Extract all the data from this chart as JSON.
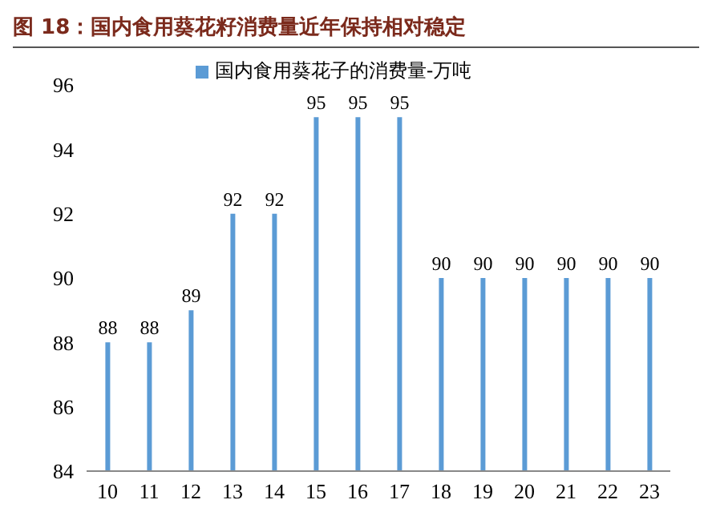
{
  "chart_data": {
    "type": "bar",
    "title": "图 18：国内食用葵花籽消费量近年保持相对稳定",
    "categories": [
      "10",
      "11",
      "12",
      "13",
      "14",
      "15",
      "16",
      "17",
      "18",
      "19",
      "20",
      "21",
      "22",
      "23"
    ],
    "series": [
      {
        "name": "国内食用葵花子的消费量-万吨",
        "color": "#5b9bd5",
        "values": [
          88,
          88,
          89,
          92,
          92,
          95,
          95,
          95,
          90,
          90,
          90,
          90,
          90,
          90
        ]
      }
    ],
    "ylim": [
      84,
      96
    ],
    "yticks": [
      84,
      86,
      88,
      90,
      92,
      94,
      96
    ],
    "grid": false,
    "legend": "top",
    "data_labels": true
  }
}
